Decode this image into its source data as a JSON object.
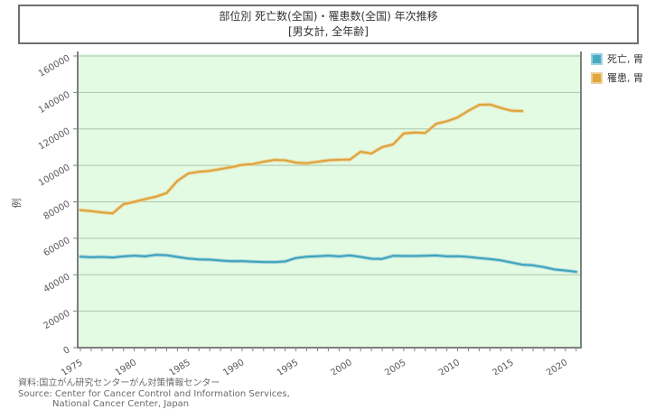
{
  "header": {
    "title_line1": "部位別 死亡数(全国)・罹患数(全国) 年次推移",
    "title_line2": "[男女計, 全年齢]"
  },
  "legend": {
    "items": [
      {
        "label": "死亡, 胃",
        "color": "#4aa9c2",
        "border": "#9bd2e0"
      },
      {
        "label": "罹患, 胃",
        "color": "#e2a63d",
        "border": "#eecf9a"
      }
    ]
  },
  "source": {
    "line1": "資料:国立がん研究センターがん対策情報センター",
    "line2": "Source: Center for Cancer Control and Information Services,",
    "line3": "National Cancer Center, Japan"
  },
  "chart_data": {
    "type": "line",
    "title": "部位別 死亡数(全国)・罹患数(全国) 年次推移 [男女計, 全年齢]",
    "xlabel": "",
    "ylabel": "例",
    "ylim": [
      0,
      160000
    ],
    "xlim": [
      1975,
      2021
    ],
    "grid": true,
    "legend_position": "top-right",
    "plot_bg": "#e3fae3",
    "grid_color": "#aac7ab",
    "axis_color": "#7f7f7f",
    "tick_label_color": "#595959",
    "y_ticks": [
      0,
      20000,
      40000,
      60000,
      80000,
      100000,
      120000,
      140000,
      160000
    ],
    "x_major_ticks": [
      1975,
      1980,
      1985,
      1990,
      1995,
      2000,
      2005,
      2010,
      2015,
      2020
    ],
    "series": [
      {
        "name": "死亡, 胃",
        "color": "#3da3b8",
        "halo": "#a5d6e0",
        "start_year": 1975,
        "values": [
          49900,
          49600,
          49800,
          49500,
          50100,
          50500,
          50100,
          50900,
          50700,
          49800,
          48900,
          48400,
          48300,
          47800,
          47400,
          47500,
          47200,
          47000,
          46900,
          47300,
          49200,
          49900,
          50200,
          50500,
          50100,
          50600,
          49800,
          48800,
          48700,
          50400,
          50300,
          50300,
          50400,
          50600,
          50100,
          50200,
          49800,
          49200,
          48600,
          47900,
          46700,
          45500,
          45200,
          44200,
          42900,
          42300,
          41600
        ]
      },
      {
        "name": "罹患, 胃",
        "color": "#dca33b",
        "halo": "#ecd49c",
        "start_year": 1975,
        "values": [
          75400,
          74900,
          74200,
          73700,
          78700,
          80000,
          81500,
          82800,
          84800,
          91500,
          95500,
          96500,
          97000,
          98000,
          99000,
          100300,
          100700,
          102000,
          103000,
          102800,
          101500,
          101200,
          102000,
          102800,
          103100,
          103200,
          107500,
          106500,
          110000,
          111500,
          117500,
          118000,
          117800,
          122800,
          124200,
          126300,
          130000,
          133200,
          133400,
          131500,
          130000,
          129800
        ]
      }
    ]
  }
}
